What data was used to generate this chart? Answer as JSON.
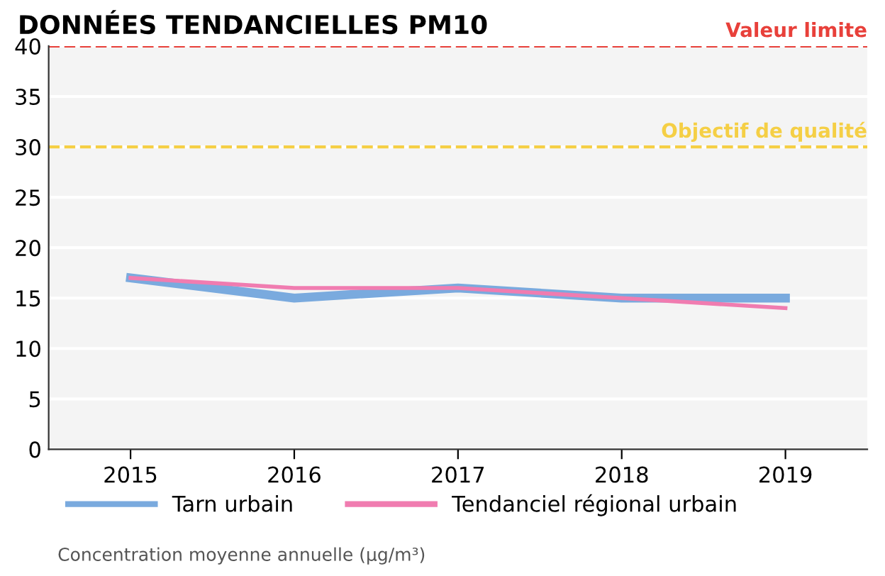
{
  "chart_data": {
    "type": "line",
    "title": "DONNÉES TENDANCIELLES PM10",
    "categories": [
      "2015",
      "2016",
      "2017",
      "2018",
      "2019"
    ],
    "series": [
      {
        "name": "Tarn urbain",
        "color": "#7aaade",
        "values": [
          17,
          15,
          16,
          15,
          15
        ]
      },
      {
        "name": "Tendanciel régional urbain",
        "color": "#f07cb0",
        "values": [
          17,
          16,
          16,
          15,
          14
        ]
      }
    ],
    "ylim": [
      0,
      40
    ],
    "yticks": [
      0,
      5,
      10,
      15,
      20,
      25,
      30,
      35,
      40
    ],
    "grid": "y",
    "legend": "bottom",
    "marker": "none",
    "line_style": "solid",
    "ref_lines": [
      {
        "axis": "y",
        "value": 40,
        "label": "Valeur limite",
        "color": "#e8403a",
        "line_style": "dashed"
      },
      {
        "axis": "y",
        "value": 30,
        "label": "Objectif de qualité",
        "color": "#f5cf45",
        "line_style": "dashed"
      }
    ],
    "annotations": [
      "Concentration moyenne annuelle (µg/m³)"
    ]
  }
}
